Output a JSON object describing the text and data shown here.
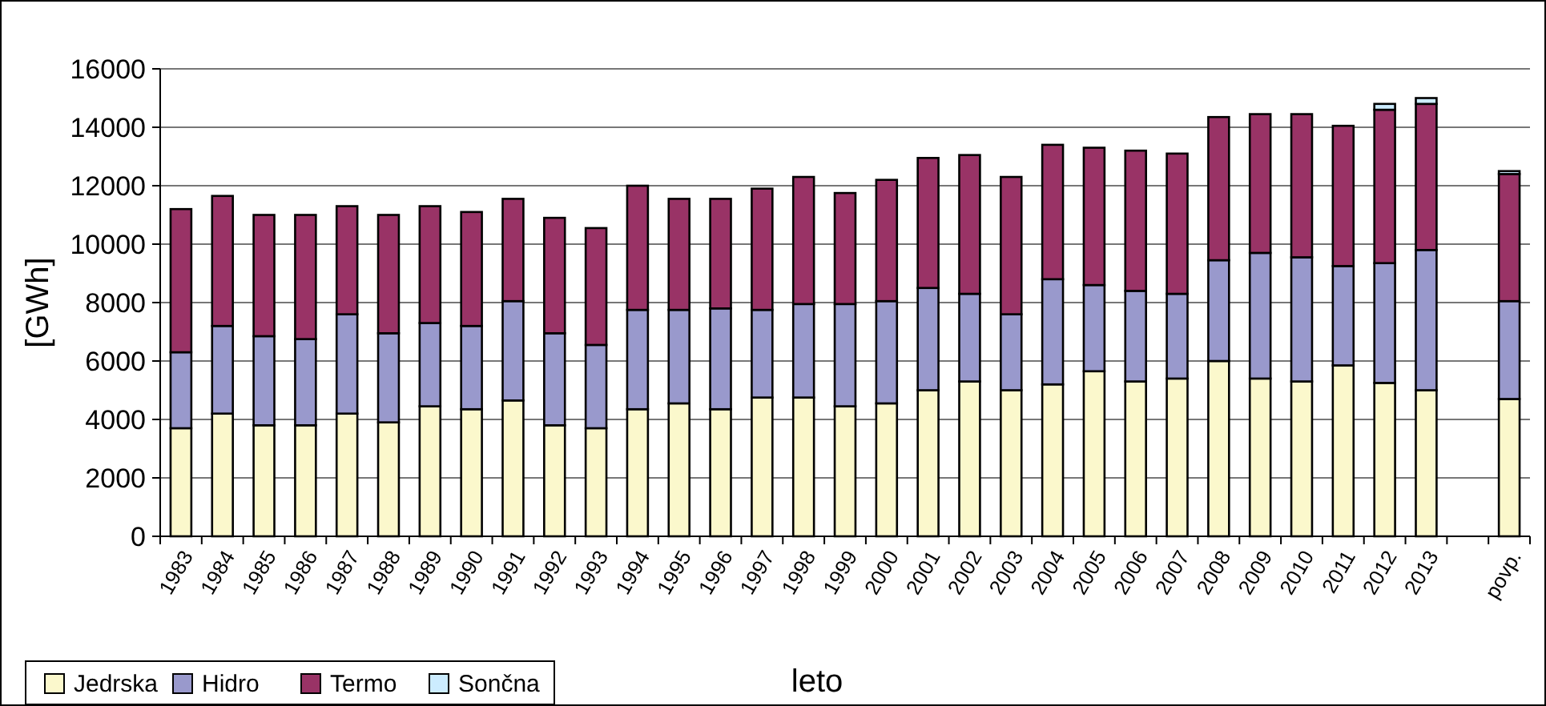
{
  "chart_data": {
    "type": "bar",
    "stacked": true,
    "xlabel": "leto",
    "ylabel": "[GWh]",
    "categories": [
      "1983",
      "1984",
      "1985",
      "1986",
      "1987",
      "1988",
      "1989",
      "1990",
      "1991",
      "1992",
      "1993",
      "1994",
      "1995",
      "1996",
      "1997",
      "1998",
      "1999",
      "2000",
      "2001",
      "2002",
      "2003",
      "2004",
      "2005",
      "2006",
      "2007",
      "2008",
      "2009",
      "2010",
      "2011",
      "2012",
      "2013",
      null,
      "povp."
    ],
    "series": [
      {
        "name": "Jedrska",
        "color": "#fbf8cc",
        "values": [
          3700,
          4200,
          3800,
          3800,
          4200,
          3900,
          4450,
          4350,
          4650,
          3800,
          3700,
          4350,
          4550,
          4350,
          4750,
          4750,
          4450,
          4550,
          5000,
          5300,
          5000,
          5200,
          5650,
          5300,
          5400,
          6000,
          5400,
          5300,
          5850,
          5250,
          5000,
          null,
          4700
        ]
      },
      {
        "name": "Hidro",
        "color": "#9999cc",
        "values": [
          2600,
          3000,
          3050,
          2950,
          3400,
          3050,
          2850,
          2850,
          3400,
          3150,
          2850,
          3400,
          3200,
          3450,
          3000,
          3200,
          3500,
          3500,
          3500,
          3000,
          2600,
          3600,
          2950,
          3100,
          2900,
          3450,
          4300,
          4250,
          3400,
          4100,
          4800,
          null,
          3350
        ]
      },
      {
        "name": "Termo",
        "color": "#993366",
        "values": [
          4900,
          4450,
          4150,
          4250,
          3700,
          4050,
          4000,
          3900,
          3500,
          3950,
          4000,
          4250,
          3800,
          3750,
          4150,
          4350,
          3800,
          4150,
          4450,
          4750,
          4700,
          4600,
          4700,
          4800,
          4800,
          4900,
          4750,
          4900,
          4800,
          5250,
          5000,
          null,
          4350
        ]
      },
      {
        "name": "Sončna",
        "color": "#ccecff",
        "values": [
          0,
          0,
          0,
          0,
          0,
          0,
          0,
          0,
          0,
          0,
          0,
          0,
          0,
          0,
          0,
          0,
          0,
          0,
          0,
          0,
          0,
          0,
          0,
          0,
          0,
          0,
          0,
          0,
          0,
          200,
          200,
          null,
          100
        ]
      }
    ],
    "ylim": [
      0,
      16000
    ],
    "yticks": [
      0,
      2000,
      4000,
      6000,
      8000,
      10000,
      12000,
      14000,
      16000
    ],
    "grid": "y",
    "legend": "bottom left"
  }
}
